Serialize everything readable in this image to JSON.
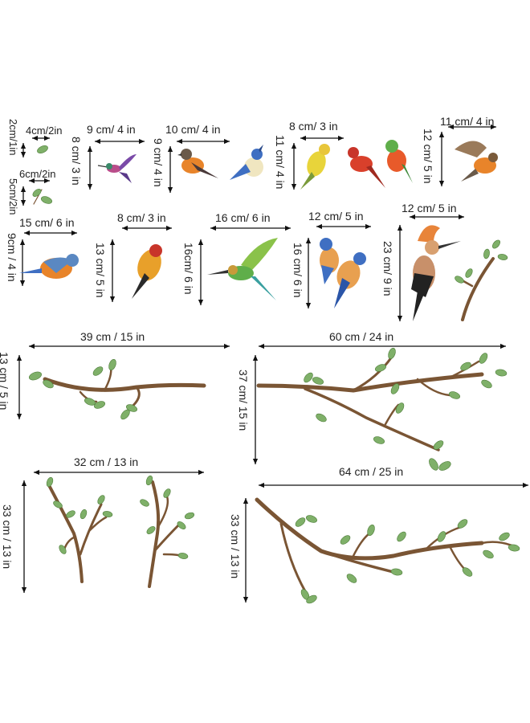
{
  "dimensions": {
    "leaf_small_w": "4cm/2in",
    "leaf_small_h": "2cm/1in",
    "leaf_med_w": "6cm/2in",
    "leaf_med_h": "5cm/2in",
    "hummingbird_w": "9  cm/ 4 in",
    "hummingbird_h": "8 cm/ 3 in",
    "bird_pair_w": "10 cm/ 4 in",
    "bird_pair_h": "9 cm/ 4 in",
    "bird_trio_w": "8 cm/ 3 in",
    "bird_trio_h": "11 cm/ 4 in",
    "robin_flying_w": "11 cm/ 4 in",
    "robin_flying_h": "12 cm/ 5 in",
    "robin_w": "15 cm/ 6 in",
    "robin_h": "9cm / 4 in",
    "goldfinch_w": "8 cm/ 3 in",
    "goldfinch_h": "13 cm/ 5 in",
    "beeeater_w": "16 cm/ 6 in",
    "beeeater_h": "16cm/ 6 in",
    "bluebirds_w": "12 cm/ 5 in",
    "bluebirds_h": "16 cm/ 6 in",
    "hoopoe_w": "12 cm/ 5 in",
    "hoopoe_h": "23 cm/ 9 in",
    "branch1_w": "39 cm / 15 in",
    "branch1_h": "13 cm / 5 in",
    "branch2_w": "60 cm / 24 in",
    "branch2_h": "37 cm/ 15 in",
    "branch3_w": "32 cm / 13 in",
    "branch3_h": "33 cm / 13 in",
    "branch4_w": "64 cm / 25 in",
    "branch4_h": "33 cm / 13 in"
  },
  "colors": {
    "branch": "#7a5534",
    "leaf": "#7fb069",
    "robin_orange": "#e8842a",
    "blue": "#3f6fc2",
    "yellow": "#e8c63a",
    "red": "#d9402b",
    "green": "#5fae4a",
    "purple": "#7a4aa8"
  }
}
